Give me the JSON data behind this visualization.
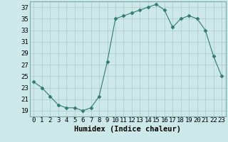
{
  "x": [
    0,
    1,
    2,
    3,
    4,
    5,
    6,
    7,
    8,
    9,
    10,
    11,
    12,
    13,
    14,
    15,
    16,
    17,
    18,
    19,
    20,
    21,
    22,
    23
  ],
  "y": [
    24,
    23,
    21.5,
    20,
    19.5,
    19.5,
    19,
    19.5,
    21.5,
    27.5,
    35,
    35.5,
    36,
    36.5,
    37,
    37.5,
    36.5,
    33.5,
    35,
    35.5,
    35,
    33,
    28.5,
    25
  ],
  "line_color": "#2e7d6e",
  "marker": "D",
  "marker_size": 2.5,
  "bg_color": "#cce8e8",
  "grid_color": "#b0c8c8",
  "xlabel": "Humidex (Indice chaleur)",
  "ylim": [
    18,
    38
  ],
  "xlim": [
    -0.5,
    23.5
  ],
  "yticks": [
    19,
    21,
    23,
    25,
    27,
    29,
    31,
    33,
    35,
    37
  ],
  "xticks": [
    0,
    1,
    2,
    3,
    4,
    5,
    6,
    7,
    8,
    9,
    10,
    11,
    12,
    13,
    14,
    15,
    16,
    17,
    18,
    19,
    20,
    21,
    22,
    23
  ],
  "xlabel_fontsize": 7.5,
  "tick_fontsize": 6.5
}
